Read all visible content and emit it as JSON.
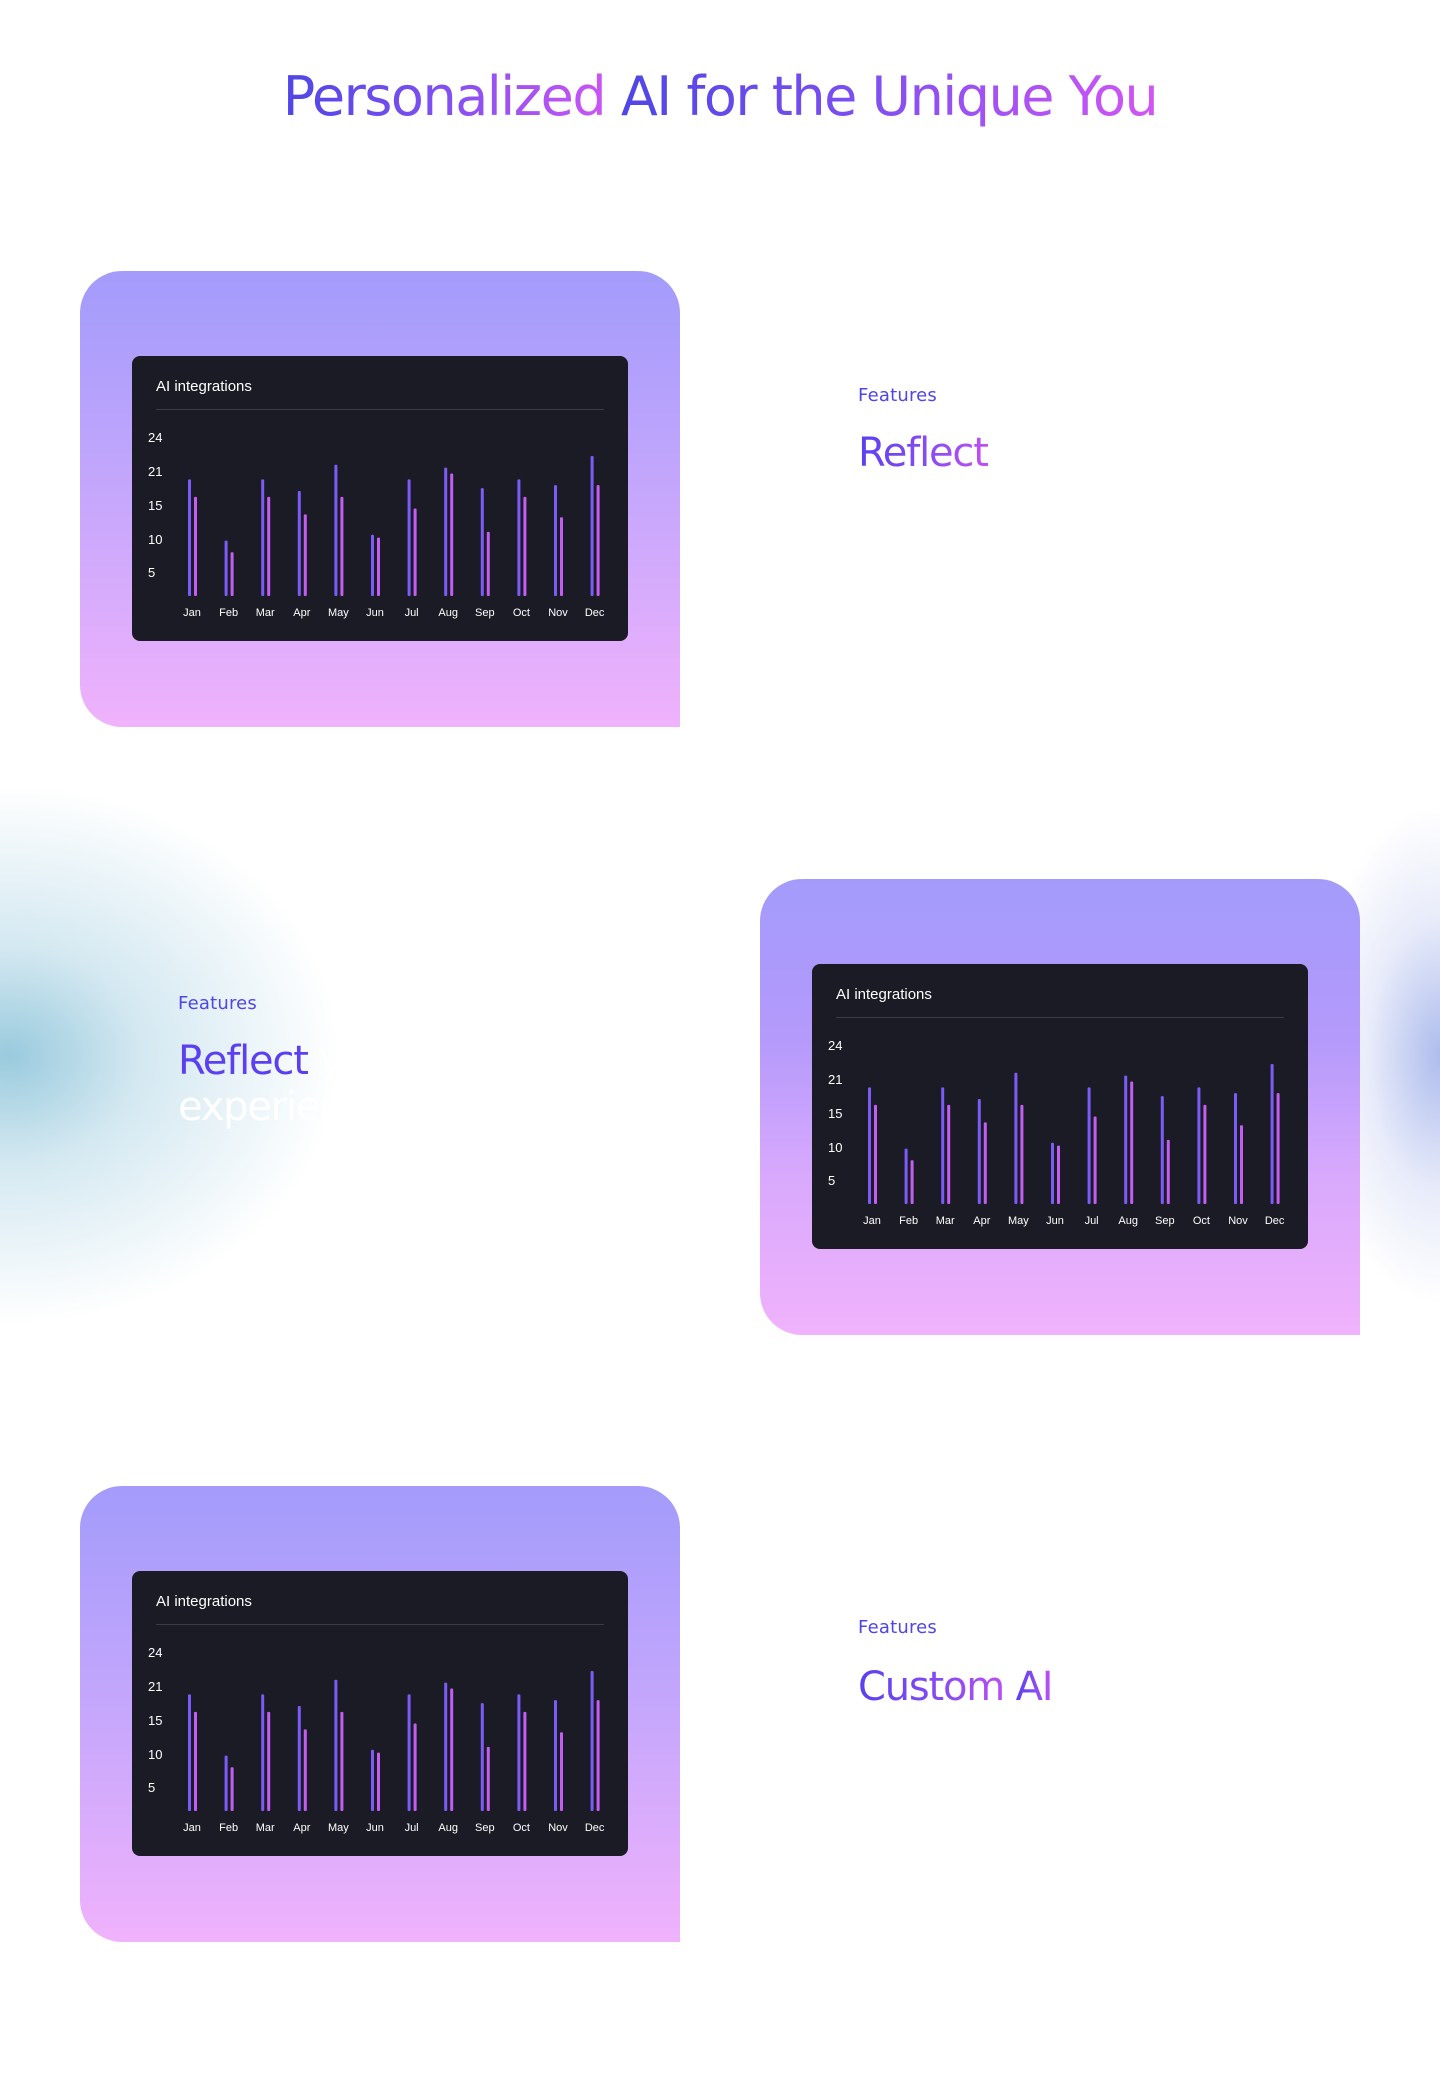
{
  "page": {
    "title_part1": "Personalized ",
    "title_part2": "AI for the Unique You"
  },
  "cards": [
    {
      "panel_title": "AI integrations",
      "features_label": "Features",
      "heading": "Reflect"
    },
    {
      "panel_title": "AI integrations",
      "features_label": "Features",
      "heading_lead": "Reflect",
      "heading_rest": " your style, tone, experience, insights"
    },
    {
      "panel_title": "AI integrations",
      "features_label": "Features",
      "heading_part1": "Custom ",
      "heading_part2": "AI"
    }
  ],
  "colors": {
    "series_a": "#7c5cf6",
    "series_b": "#c45ef2",
    "panel_bg": "#1b1b25"
  },
  "chart_data": {
    "type": "bar",
    "title": "AI integrations",
    "categories": [
      "Jan",
      "Feb",
      "Mar",
      "Apr",
      "May",
      "Jun",
      "Jul",
      "Aug",
      "Sep",
      "Oct",
      "Nov",
      "Dec"
    ],
    "y_ticks": [
      24,
      21,
      15,
      10,
      5
    ],
    "ylim": [
      0,
      24
    ],
    "series": [
      {
        "values": [
          20,
          9.5,
          20,
          18,
          22.5,
          10.5,
          20,
          22,
          18.5,
          20,
          19,
          24
        ]
      },
      {
        "values": [
          17,
          7.5,
          17,
          14,
          17,
          10,
          15,
          21,
          11,
          17,
          13.5,
          19
        ]
      }
    ]
  }
}
